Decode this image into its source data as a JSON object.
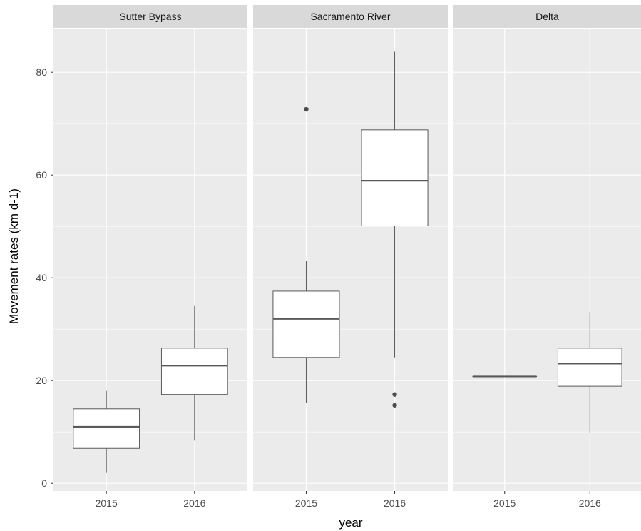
{
  "chart_data": {
    "type": "boxplot",
    "xlabel": "year",
    "ylabel": "Movement rates (km d-1)",
    "ylim": [
      -1.5,
      88.5
    ],
    "y_ticks": [
      0,
      20,
      40,
      60,
      80
    ],
    "grid": true,
    "categories": [
      "2015",
      "2016"
    ],
    "colors": {
      "panel_bg": "#ebebeb",
      "strip_bg": "#d9d9d9",
      "grid_major": "#ffffff",
      "box_fill": "#ffffff",
      "box_line": "#595959",
      "outlier": "#4d4d4d"
    },
    "panels": [
      {
        "name": "Sutter Bypass",
        "boxes": [
          {
            "x": "2015",
            "min": 2.0,
            "q1": 6.8,
            "median": 11.0,
            "q3": 14.5,
            "max": 18.0,
            "outliers": []
          },
          {
            "x": "2016",
            "min": 8.3,
            "q1": 17.3,
            "median": 22.9,
            "q3": 26.3,
            "max": 34.5,
            "outliers": []
          }
        ]
      },
      {
        "name": "Sacramento River",
        "boxes": [
          {
            "x": "2015",
            "min": 15.7,
            "q1": 24.5,
            "median": 32.0,
            "q3": 37.4,
            "max": 43.3,
            "outliers": [
              72.8
            ]
          },
          {
            "x": "2016",
            "min": 24.5,
            "q1": 50.1,
            "median": 58.9,
            "q3": 68.8,
            "max": 84.0,
            "outliers": [
              17.3,
              15.2
            ]
          }
        ]
      },
      {
        "name": "Delta",
        "boxes": [
          {
            "x": "2015",
            "min": 20.8,
            "q1": 20.8,
            "median": 20.8,
            "q3": 20.8,
            "max": 20.8,
            "outliers": []
          },
          {
            "x": "2016",
            "min": 9.9,
            "q1": 18.9,
            "median": 23.3,
            "q3": 26.3,
            "max": 33.3,
            "outliers": []
          }
        ]
      }
    ]
  }
}
